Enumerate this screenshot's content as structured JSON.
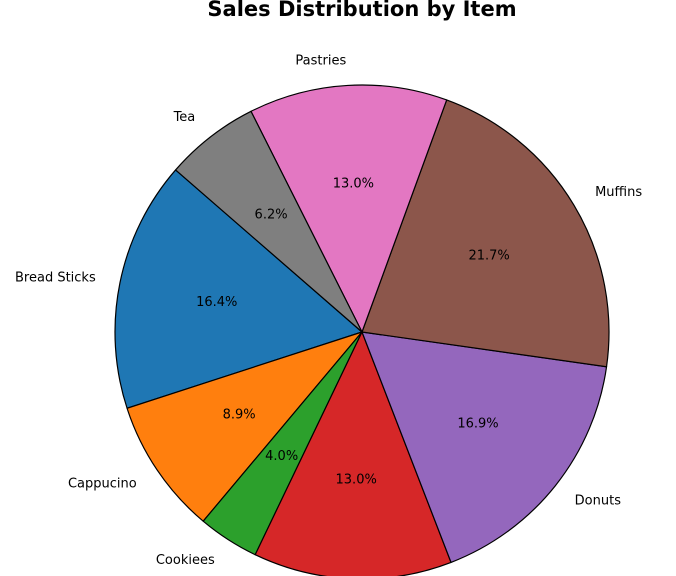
{
  "chart_data": {
    "type": "pie",
    "title": "Sales Distribution by Item",
    "categories": [
      "Bread Sticks",
      "Cappucino",
      "Cookiees",
      "",
      "Donuts",
      "Muffins",
      "Pastries",
      "Tea"
    ],
    "values": [
      16.4,
      8.9,
      4.0,
      13.0,
      16.9,
      21.7,
      13.0,
      6.2
    ],
    "value_labels": [
      "16.4%",
      "8.9%",
      "4.0%",
      "13.0%",
      "16.9%",
      "21.7%",
      "13.0%",
      "6.2%"
    ],
    "colors": [
      "#1f77b4",
      "#ff7f0e",
      "#2ca02c",
      "#d62728",
      "#9467bd",
      "#8c564b",
      "#e377c2",
      "#7f7f7f"
    ],
    "edge_color": "#000000",
    "start_angle_deg": 139,
    "direction": "counterclockwise",
    "legend": "none"
  }
}
